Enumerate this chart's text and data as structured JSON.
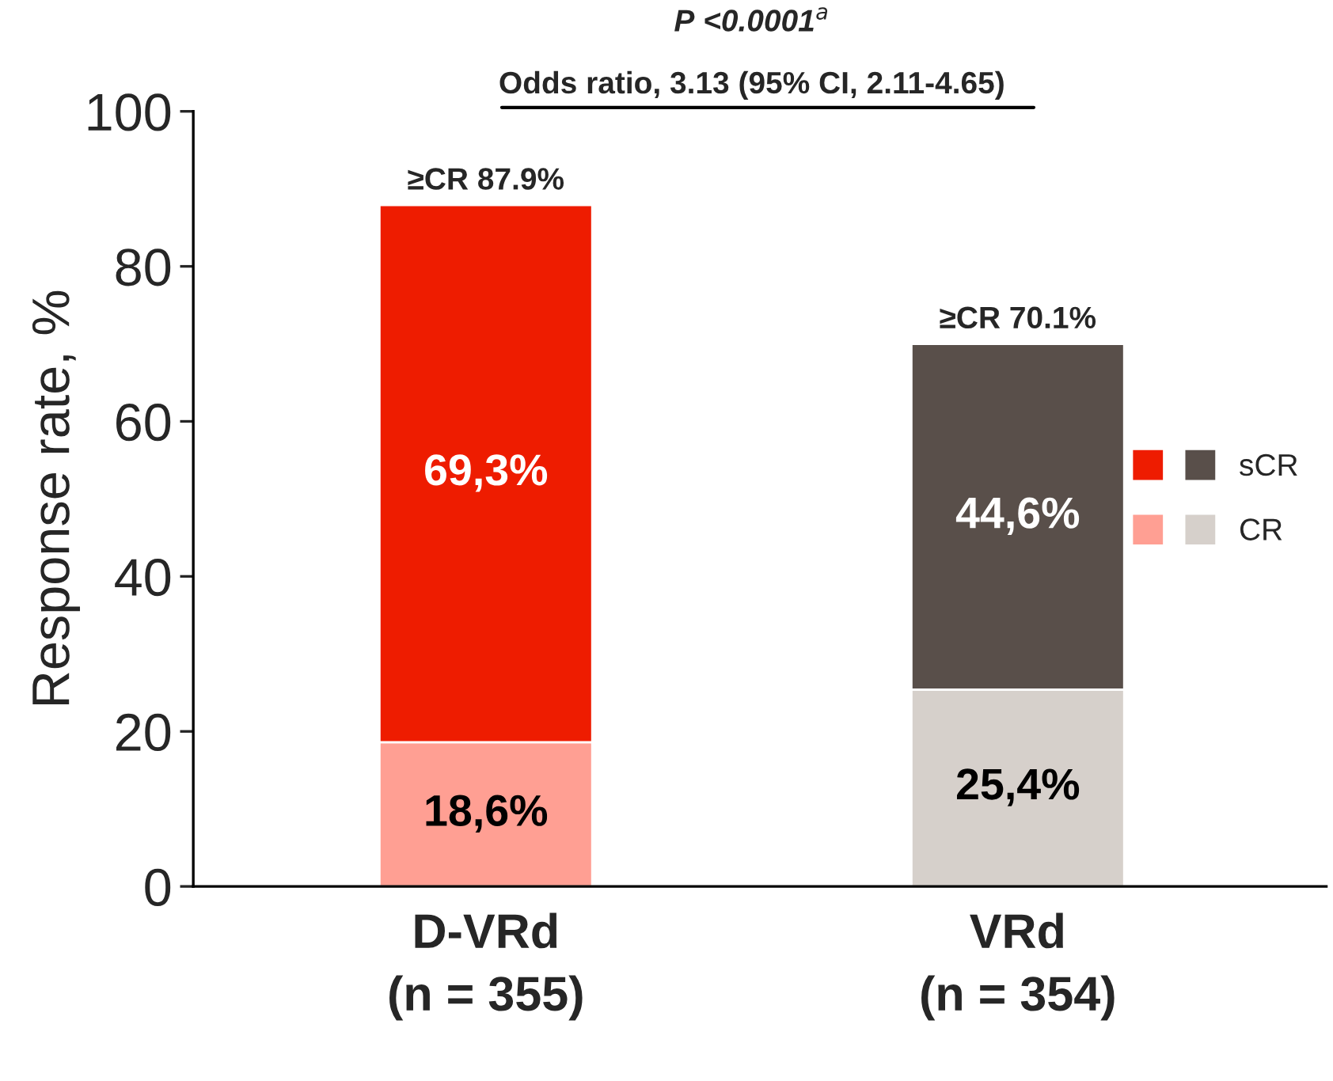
{
  "chart_data": {
    "type": "bar",
    "stacked": true,
    "ylabel": "Response rate, %",
    "categories": [
      "D-VRd\n(n = 355)",
      "VRd\n(n = 354)"
    ],
    "series": [
      {
        "name": "CR",
        "colors": [
          "#ff9f93",
          "#d6d0cb"
        ],
        "values": [
          18.6,
          25.4
        ],
        "value_labels": [
          "18,6%",
          "25,4%"
        ]
      },
      {
        "name": "sCR",
        "colors": [
          "#ee1c00",
          "#594f4a"
        ],
        "values": [
          69.3,
          44.6
        ],
        "value_labels": [
          "69,3%",
          "44,6%"
        ]
      }
    ],
    "totals": [
      "≥CR 87.9%",
      "≥CR 70.1%"
    ],
    "annotations": [
      "P <0.0001$^{a}$",
      "Odds ratio, 3.13 (95% CI, 2.11-4.65)"
    ],
    "ylim": [
      0,
      100
    ],
    "yticks": [
      0,
      20,
      40,
      60,
      80,
      100
    ],
    "grid": false,
    "legend": "right"
  }
}
